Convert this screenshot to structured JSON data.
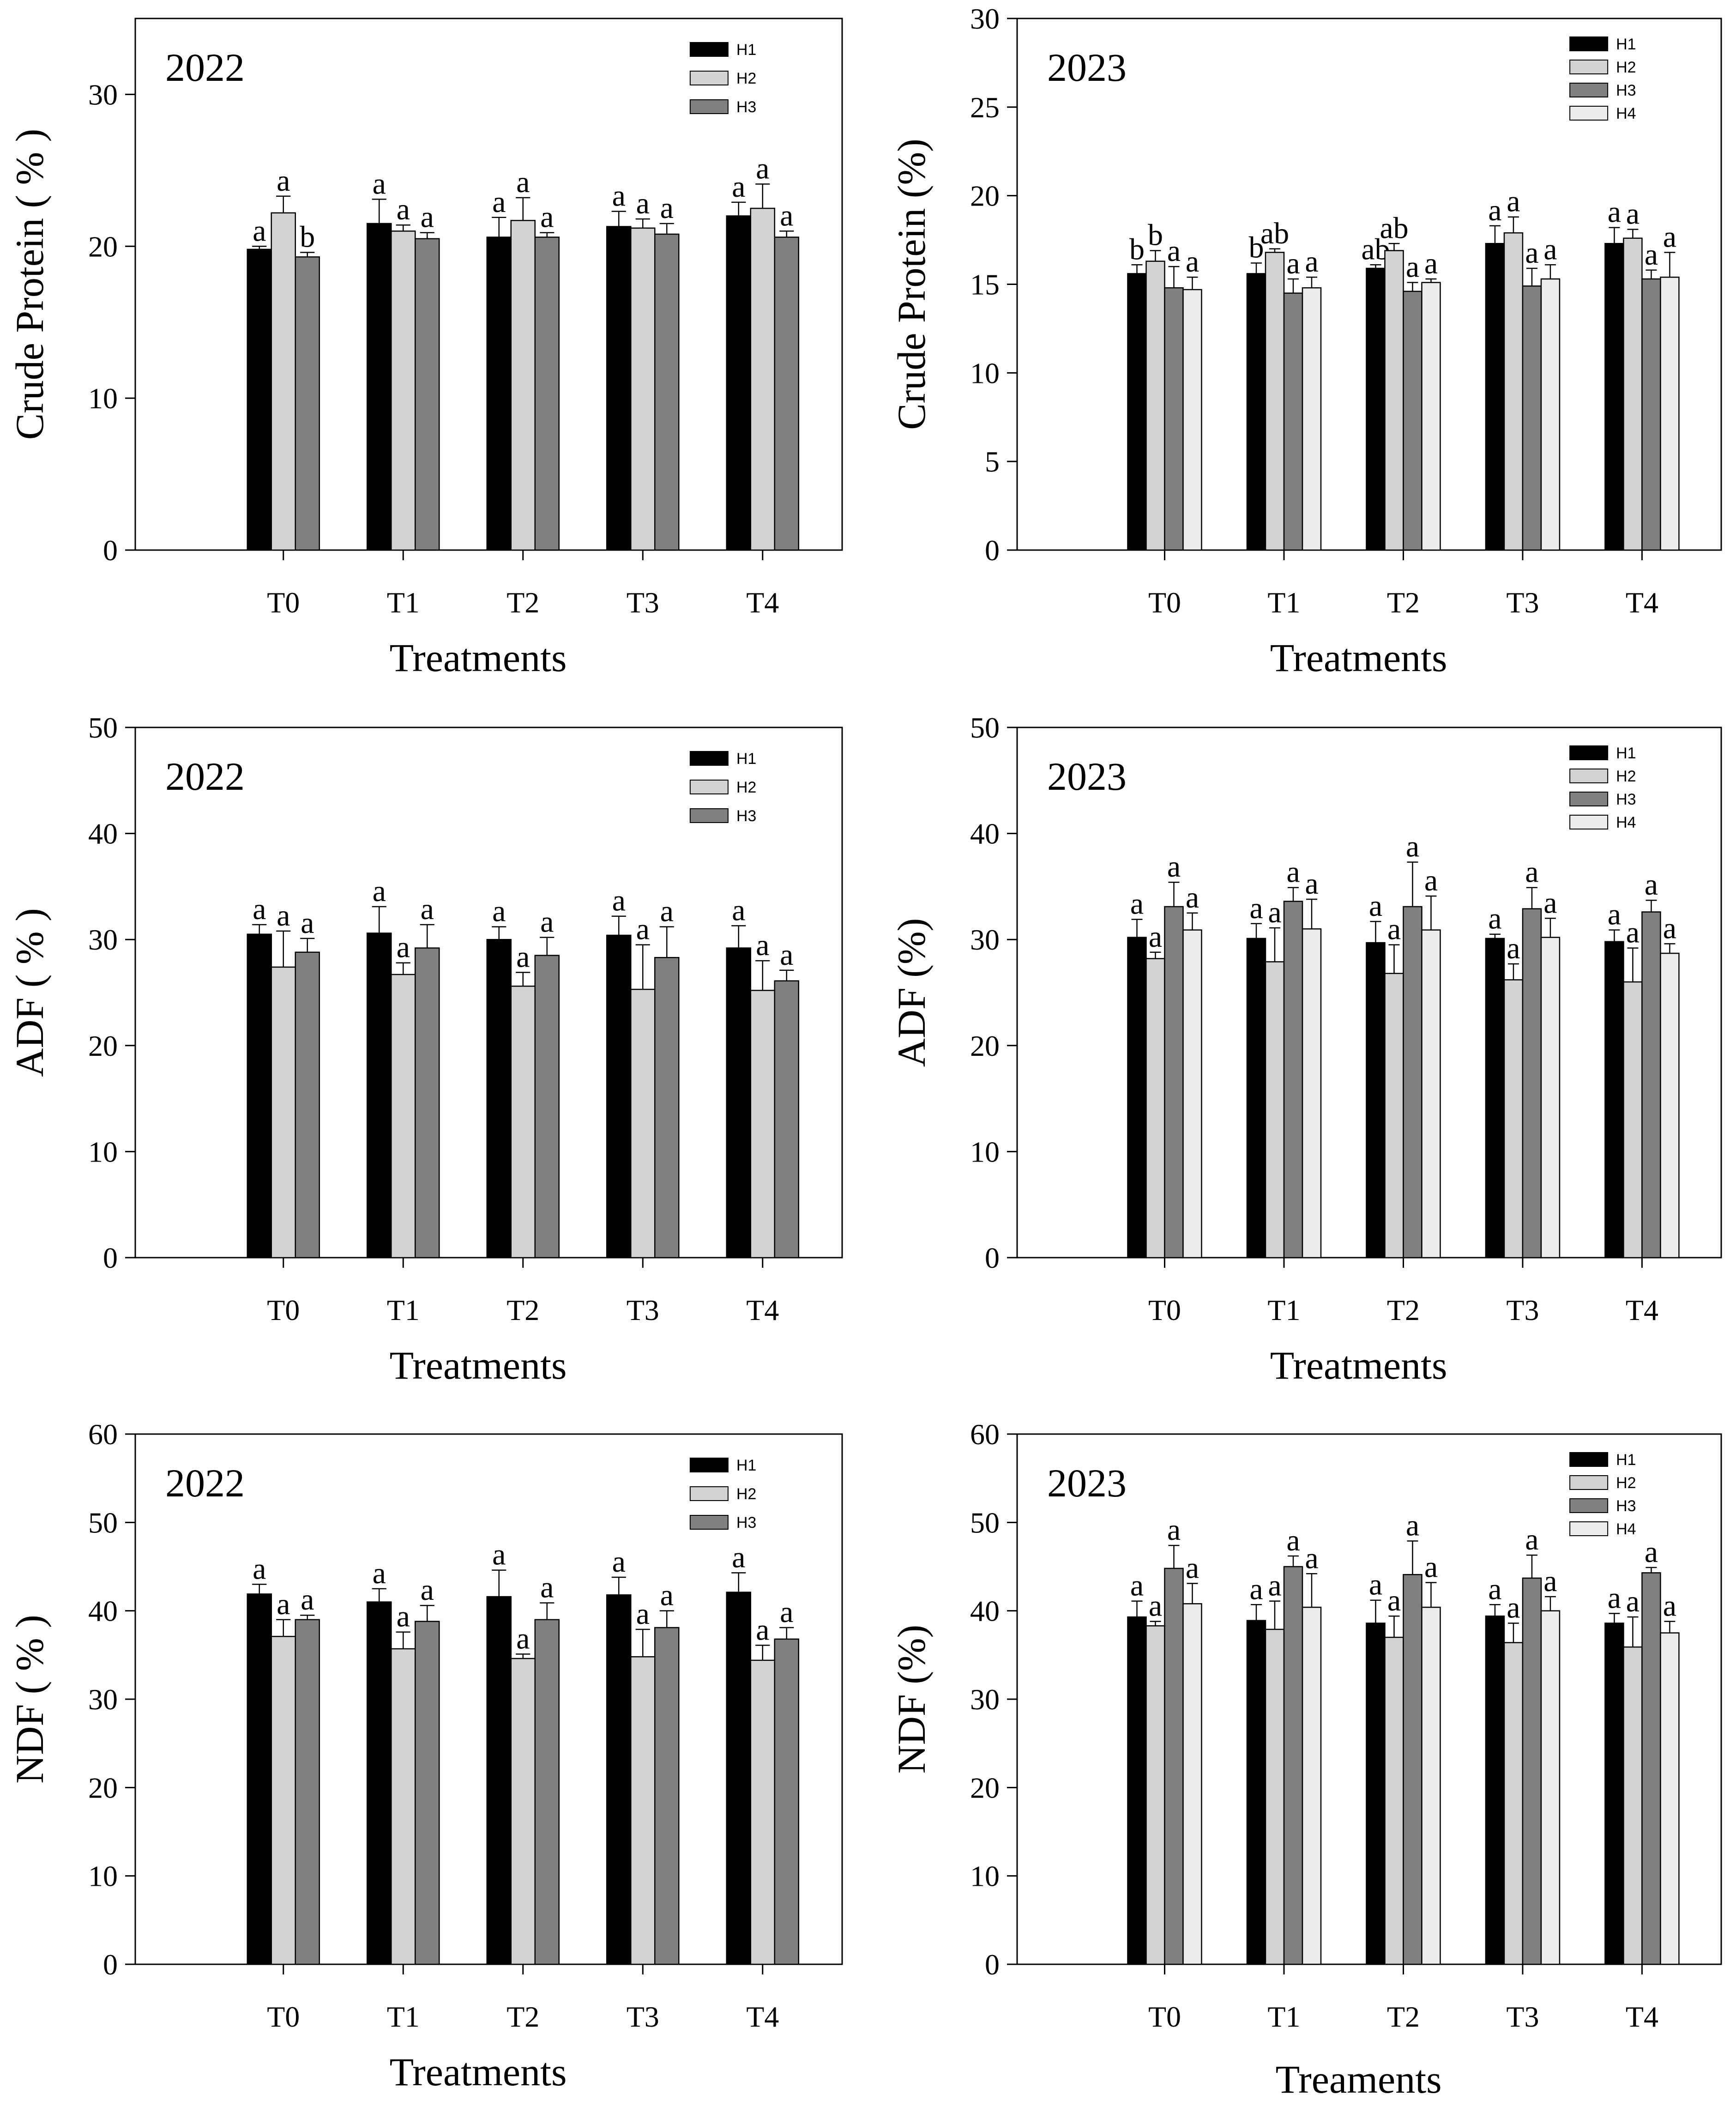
{
  "chart_data": [
    {
      "type": "bar",
      "title": "2022",
      "ylabel": "Crude Protein ( % )",
      "xlabel": "Treatments",
      "ylim": [
        0,
        35
      ],
      "yticks": [
        0,
        10,
        20,
        30
      ],
      "categories": [
        "T0",
        "T1",
        "T2",
        "T3",
        "T4"
      ],
      "legend_position": "top-right",
      "series": [
        {
          "name": "H1",
          "color": "#000000",
          "values": [
            19.8,
            21.5,
            20.6,
            21.3,
            22.0
          ],
          "errors": [
            0.2,
            1.6,
            1.3,
            1.0,
            0.9
          ],
          "letters": [
            "a",
            "a",
            "a",
            "a",
            "a"
          ]
        },
        {
          "name": "H2",
          "color": "#d3d3d3",
          "values": [
            22.2,
            21.0,
            21.7,
            21.2,
            22.5
          ],
          "errors": [
            1.1,
            0.4,
            1.5,
            0.6,
            1.6
          ],
          "letters": [
            "a",
            "a",
            "a",
            "a",
            "a"
          ]
        },
        {
          "name": "H3",
          "color": "#808080",
          "values": [
            19.3,
            20.5,
            20.6,
            20.8,
            20.6
          ],
          "errors": [
            0.3,
            0.4,
            0.3,
            0.7,
            0.4
          ],
          "letters": [
            "b",
            "a",
            "a",
            "a",
            "a"
          ]
        }
      ]
    },
    {
      "type": "bar",
      "title": "2023",
      "ylabel": "Crude Protein (%)",
      "xlabel": "Treatments",
      "ylim": [
        0,
        30
      ],
      "yticks": [
        0,
        5,
        10,
        15,
        20,
        25,
        30
      ],
      "categories": [
        "T0",
        "T1",
        "T2",
        "T3",
        "T4"
      ],
      "legend_position": "top-right",
      "series": [
        {
          "name": "H1",
          "color": "#000000",
          "values": [
            15.6,
            15.6,
            15.9,
            17.3,
            17.3
          ],
          "errors": [
            0.5,
            0.6,
            0.2,
            1.0,
            0.9
          ],
          "letters": [
            "b",
            "b",
            "ab",
            "a",
            "a"
          ]
        },
        {
          "name": "H2",
          "color": "#d3d3d3",
          "values": [
            16.3,
            16.8,
            16.9,
            17.9,
            17.6
          ],
          "errors": [
            0.6,
            0.2,
            0.4,
            0.9,
            0.5
          ],
          "letters": [
            "b",
            "ab",
            "ab",
            "a",
            "a"
          ]
        },
        {
          "name": "H3",
          "color": "#808080",
          "values": [
            14.8,
            14.5,
            14.6,
            14.9,
            15.3
          ],
          "errors": [
            1.2,
            0.8,
            0.5,
            1.0,
            0.5
          ],
          "letters": [
            "a",
            "a",
            "a",
            "a",
            "a"
          ]
        },
        {
          "name": "H4",
          "color": "#ececec",
          "values": [
            14.7,
            14.8,
            15.1,
            15.3,
            15.4
          ],
          "errors": [
            0.7,
            0.6,
            0.2,
            0.8,
            1.4
          ],
          "letters": [
            "a",
            "a",
            "a",
            "a",
            "a"
          ]
        }
      ]
    },
    {
      "type": "bar",
      "title": "2022",
      "ylabel": "ADF ( % )",
      "xlabel": "Treatments",
      "ylim": [
        0,
        50
      ],
      "yticks": [
        0,
        10,
        20,
        30,
        40,
        50
      ],
      "categories": [
        "T0",
        "T1",
        "T2",
        "T3",
        "T4"
      ],
      "legend_position": "top-right",
      "series": [
        {
          "name": "H1",
          "color": "#000000",
          "values": [
            30.5,
            30.6,
            30.0,
            30.4,
            29.2
          ],
          "errors": [
            0.9,
            2.5,
            1.2,
            1.8,
            2.1
          ],
          "letters": [
            "a",
            "a",
            "a",
            "a",
            "a"
          ]
        },
        {
          "name": "H2",
          "color": "#d3d3d3",
          "values": [
            27.4,
            26.7,
            25.6,
            25.3,
            25.2
          ],
          "errors": [
            3.4,
            1.1,
            1.3,
            4.2,
            2.8
          ],
          "letters": [
            "a",
            "a",
            "a",
            "a",
            "a"
          ]
        },
        {
          "name": "H3",
          "color": "#808080",
          "values": [
            28.8,
            29.2,
            28.5,
            28.3,
            26.1
          ],
          "errors": [
            1.3,
            2.2,
            1.7,
            2.9,
            1.0
          ],
          "letters": [
            "a",
            "a",
            "a",
            "a",
            "a"
          ]
        }
      ]
    },
    {
      "type": "bar",
      "title": "2023",
      "ylabel": "ADF (%)",
      "xlabel": "Treatments",
      "ylim": [
        0,
        50
      ],
      "yticks": [
        0,
        10,
        20,
        30,
        40,
        50
      ],
      "categories": [
        "T0",
        "T1",
        "T2",
        "T3",
        "T4"
      ],
      "legend_position": "top-right",
      "series": [
        {
          "name": "H1",
          "color": "#000000",
          "values": [
            30.2,
            30.1,
            29.7,
            30.1,
            29.8
          ],
          "errors": [
            1.7,
            1.4,
            2.0,
            0.4,
            1.1
          ],
          "letters": [
            "a",
            "a",
            "a",
            "a",
            "a"
          ]
        },
        {
          "name": "H2",
          "color": "#d3d3d3",
          "values": [
            28.2,
            27.9,
            26.8,
            26.2,
            26.0
          ],
          "errors": [
            0.6,
            3.2,
            2.7,
            1.5,
            3.2
          ],
          "letters": [
            "a",
            "a",
            "a",
            "a",
            "a"
          ]
        },
        {
          "name": "H3",
          "color": "#808080",
          "values": [
            33.1,
            33.6,
            33.1,
            32.9,
            32.6
          ],
          "errors": [
            2.3,
            1.3,
            4.2,
            2.0,
            1.1
          ],
          "letters": [
            "a",
            "a",
            "a",
            "a",
            "a"
          ]
        },
        {
          "name": "H4",
          "color": "#ececec",
          "values": [
            30.9,
            31.0,
            30.9,
            30.2,
            28.7
          ],
          "errors": [
            1.6,
            2.8,
            3.2,
            1.8,
            0.9
          ],
          "letters": [
            "a",
            "a",
            "a",
            "a",
            "a"
          ]
        }
      ]
    },
    {
      "type": "bar",
      "title": "2022",
      "ylabel": "NDF ( % )",
      "xlabel": "Treatments",
      "ylim": [
        0,
        60
      ],
      "yticks": [
        0,
        10,
        20,
        30,
        40,
        50,
        60
      ],
      "categories": [
        "T0",
        "T1",
        "T2",
        "T3",
        "T4"
      ],
      "legend_position": "top-right",
      "series": [
        {
          "name": "H1",
          "color": "#000000",
          "values": [
            41.9,
            41.0,
            41.6,
            41.8,
            42.1
          ],
          "errors": [
            1.1,
            1.5,
            3.0,
            2.0,
            2.2
          ],
          "letters": [
            "a",
            "a",
            "a",
            "a",
            "a"
          ]
        },
        {
          "name": "H2",
          "color": "#d3d3d3",
          "values": [
            37.1,
            35.7,
            34.6,
            34.8,
            34.4
          ],
          "errors": [
            1.9,
            1.9,
            0.5,
            3.1,
            1.7
          ],
          "letters": [
            "a",
            "a",
            "a",
            "a",
            "a"
          ]
        },
        {
          "name": "H3",
          "color": "#808080",
          "values": [
            39.0,
            38.8,
            39.0,
            38.1,
            36.8
          ],
          "errors": [
            0.5,
            1.8,
            1.9,
            1.9,
            1.3
          ],
          "letters": [
            "a",
            "a",
            "a",
            "a",
            "a"
          ]
        }
      ]
    },
    {
      "type": "bar",
      "title": "2023",
      "ylabel": "NDF (%)",
      "xlabel": "Treaments",
      "ylim": [
        0,
        60
      ],
      "yticks": [
        0,
        10,
        20,
        30,
        40,
        50,
        60
      ],
      "categories": [
        "T0",
        "T1",
        "T2",
        "T3",
        "T4"
      ],
      "legend_position": "top-right",
      "series": [
        {
          "name": "H1",
          "color": "#000000",
          "values": [
            39.3,
            38.9,
            38.6,
            39.4,
            38.6
          ],
          "errors": [
            1.8,
            1.8,
            2.6,
            1.3,
            1.1
          ],
          "letters": [
            "a",
            "a",
            "a",
            "a",
            "a"
          ]
        },
        {
          "name": "H2",
          "color": "#d3d3d3",
          "values": [
            38.3,
            37.9,
            37.0,
            36.4,
            35.9
          ],
          "errors": [
            0.5,
            3.2,
            2.4,
            2.2,
            3.4
          ],
          "letters": [
            "a",
            "a",
            "a",
            "a",
            "a"
          ]
        },
        {
          "name": "H3",
          "color": "#808080",
          "values": [
            44.8,
            45.0,
            44.1,
            43.7,
            44.3
          ],
          "errors": [
            2.6,
            1.2,
            3.8,
            2.6,
            0.6
          ],
          "letters": [
            "a",
            "a",
            "a",
            "a",
            "a"
          ]
        },
        {
          "name": "H4",
          "color": "#ececec",
          "values": [
            40.8,
            40.4,
            40.4,
            40.0,
            37.5
          ],
          "errors": [
            2.3,
            3.8,
            2.8,
            1.6,
            1.3
          ],
          "letters": [
            "a",
            "a",
            "a",
            "a",
            "a"
          ]
        }
      ]
    }
  ]
}
